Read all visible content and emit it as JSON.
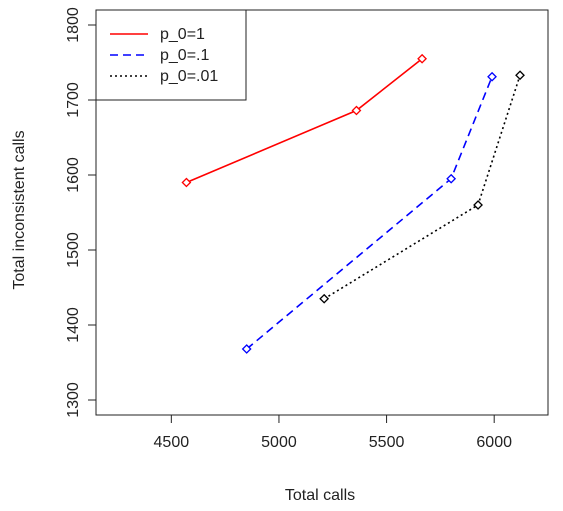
{
  "chart_data": {
    "type": "line",
    "title": "",
    "xlabel": "Total calls",
    "ylabel": "Total inconsistent calls",
    "xlim": [
      4150,
      6250
    ],
    "ylim": [
      1280,
      1820
    ],
    "xticks": [
      4500,
      5000,
      5500,
      6000
    ],
    "yticks": [
      1300,
      1400,
      1500,
      1600,
      1700,
      1800
    ],
    "xtick_labels": [
      "4500",
      "5000",
      "5500",
      "6000"
    ],
    "ytick_labels": [
      "1300",
      "1400",
      "1500",
      "1600",
      "1700",
      "1800"
    ],
    "legend_position": "top-left",
    "grid": false,
    "series": [
      {
        "name": "p_0=1",
        "color": "#ff0000",
        "dash": "solid",
        "marker": "diamond",
        "points": [
          [
            4570,
            1590
          ],
          [
            5360,
            1686
          ],
          [
            5665,
            1755
          ]
        ]
      },
      {
        "name": "p_0=.1",
        "color": "#0000ff",
        "dash": "dashed",
        "marker": "diamond",
        "points": [
          [
            4850,
            1368
          ],
          [
            5800,
            1595
          ],
          [
            5990,
            1731
          ]
        ]
      },
      {
        "name": "p_0=.01",
        "color": "#000000",
        "dash": "dotted",
        "marker": "diamond",
        "points": [
          [
            5210,
            1435
          ],
          [
            5925,
            1560
          ],
          [
            6120,
            1733
          ]
        ]
      }
    ]
  }
}
